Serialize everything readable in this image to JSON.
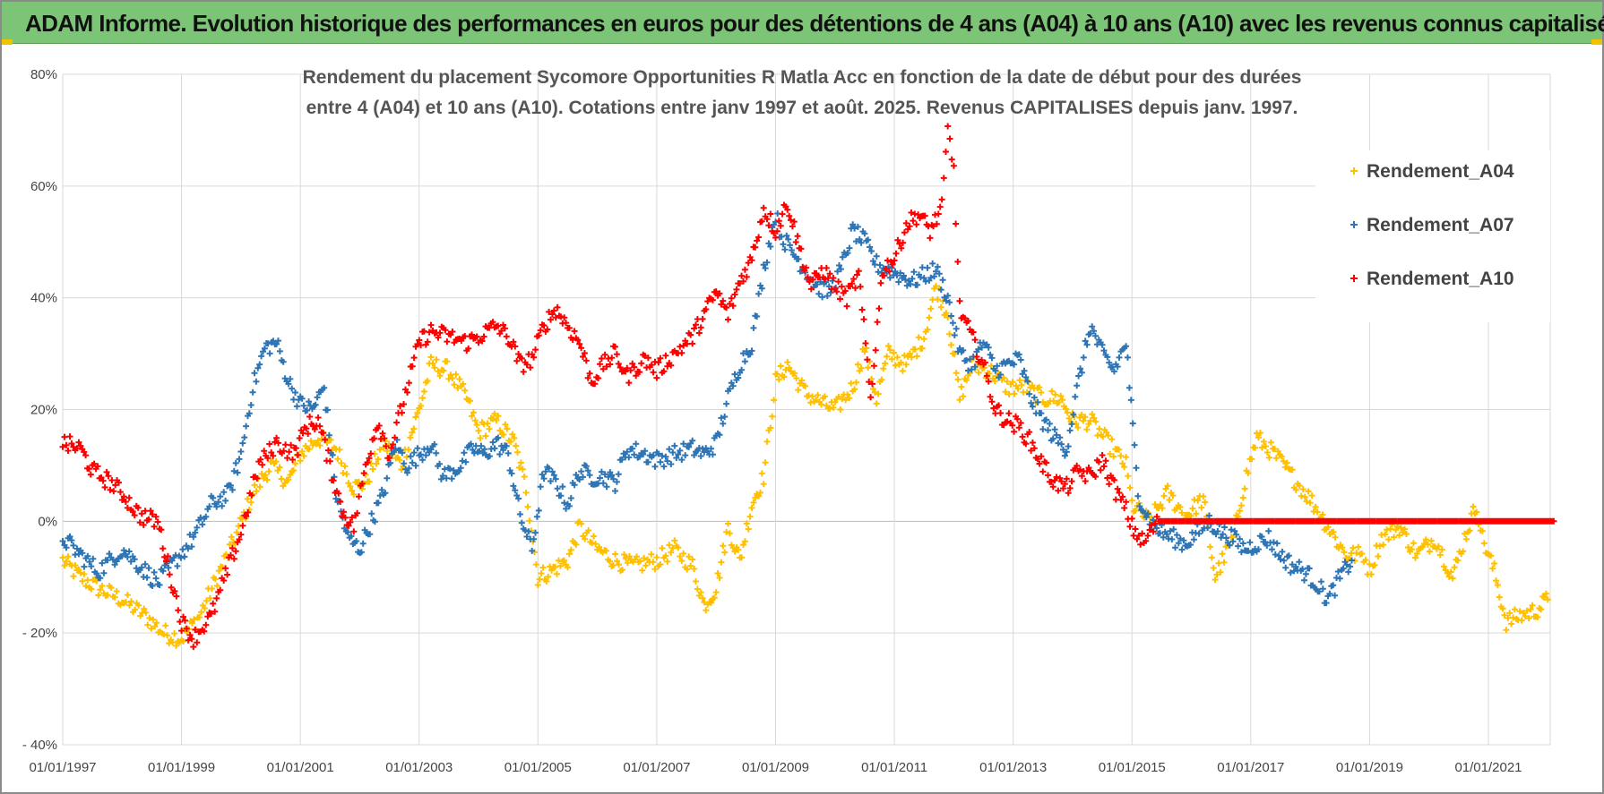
{
  "banner": {
    "title": "ADAM Informe. Evolution historique des performances en euros pour des détentions de 4 ans (A04) à 10 ans (A10) avec les revenus connus capitalisés",
    "color": "#7cc576"
  },
  "chart_data": {
    "type": "scatter",
    "title_lines": [
      "Rendement du placement Sycomore Opportunities R Matla Acc en fonction de la date de début pour des durées",
      "entre 4 (A04) et 10 ans (A10).  Cotations entre janv 1997 et août. 2025. Revenus CAPITALISES depuis janv. 1997."
    ],
    "xlabel": "",
    "ylabel": "",
    "x_unit": "year",
    "xlim": [
      1997.0,
      2022.2
    ],
    "ylim": [
      -40,
      80
    ],
    "x_ticks": [
      1997,
      1999,
      2001,
      2003,
      2005,
      2007,
      2009,
      2011,
      2013,
      2015,
      2017,
      2019,
      2021
    ],
    "x_tick_labels": [
      "01/01/1997",
      "01/01/1999",
      "01/01/2001",
      "01/01/2003",
      "01/01/2005",
      "01/01/2007",
      "01/01/2009",
      "01/01/2011",
      "01/01/2013",
      "01/01/2015",
      "01/01/2017",
      "01/01/2019",
      "01/01/2021"
    ],
    "y_ticks": [
      -40,
      -20,
      0,
      20,
      40,
      60,
      80
    ],
    "y_tick_labels": [
      "- 40%",
      "- 20%",
      "0%",
      "20%",
      "40%",
      "60%",
      "80%"
    ],
    "grid": true,
    "legend_position": "right",
    "series": [
      {
        "name": "Rendement_A04",
        "color": "#ffc000",
        "marker": "+",
        "points": [
          [
            1997.0,
            -7
          ],
          [
            1997.3,
            -10
          ],
          [
            1997.6,
            -12
          ],
          [
            1998.0,
            -14
          ],
          [
            1998.4,
            -17
          ],
          [
            1998.7,
            -20
          ],
          [
            1999.0,
            -21
          ],
          [
            1999.3,
            -17
          ],
          [
            1999.6,
            -10
          ],
          [
            1999.9,
            -3
          ],
          [
            2000.2,
            5
          ],
          [
            2000.5,
            10
          ],
          [
            2000.8,
            7
          ],
          [
            2001.0,
            12
          ],
          [
            2001.3,
            15
          ],
          [
            2001.6,
            13
          ],
          [
            2001.9,
            6
          ],
          [
            2002.1,
            7
          ],
          [
            2002.4,
            14
          ],
          [
            2002.7,
            10
          ],
          [
            2003.0,
            20
          ],
          [
            2003.2,
            28
          ],
          [
            2003.5,
            27
          ],
          [
            2003.8,
            22
          ],
          [
            2004.0,
            16
          ],
          [
            2004.3,
            18
          ],
          [
            2004.6,
            14
          ],
          [
            2004.8,
            6
          ],
          [
            2005.0,
            -10
          ],
          [
            2005.2,
            -9
          ],
          [
            2005.5,
            -7
          ],
          [
            2005.7,
            -1
          ],
          [
            2006.0,
            -5
          ],
          [
            2006.3,
            -7
          ],
          [
            2006.6,
            -8
          ],
          [
            2007.0,
            -7
          ],
          [
            2007.3,
            -5
          ],
          [
            2007.6,
            -8
          ],
          [
            2007.8,
            -15
          ],
          [
            2008.0,
            -12
          ],
          [
            2008.2,
            -1
          ],
          [
            2008.4,
            -7
          ],
          [
            2008.6,
            3
          ],
          [
            2008.8,
            8
          ],
          [
            2009.0,
            25
          ],
          [
            2009.2,
            28
          ],
          [
            2009.5,
            23
          ],
          [
            2009.8,
            21
          ],
          [
            2010.0,
            20
          ],
          [
            2010.3,
            24
          ],
          [
            2010.5,
            31
          ],
          [
            2010.7,
            22
          ],
          [
            2010.9,
            30
          ],
          [
            2011.2,
            28
          ],
          [
            2011.5,
            33
          ],
          [
            2011.7,
            42
          ],
          [
            2011.9,
            37
          ],
          [
            2012.1,
            22
          ],
          [
            2012.3,
            28
          ],
          [
            2012.6,
            27
          ],
          [
            2012.9,
            24
          ],
          [
            2013.2,
            24
          ],
          [
            2013.5,
            22
          ],
          [
            2013.8,
            22
          ],
          [
            2014.0,
            18
          ],
          [
            2014.3,
            18
          ],
          [
            2014.6,
            14
          ],
          [
            2014.9,
            10
          ],
          [
            2015.0,
            3
          ],
          [
            2015.3,
            0
          ],
          [
            2015.6,
            5
          ],
          [
            2015.9,
            1
          ],
          [
            2016.2,
            4
          ],
          [
            2016.4,
            -10
          ],
          [
            2016.7,
            -3
          ],
          [
            2016.9,
            7
          ],
          [
            2017.1,
            15
          ],
          [
            2017.4,
            12
          ],
          [
            2017.7,
            8
          ],
          [
            2018.0,
            4
          ],
          [
            2018.3,
            -1
          ],
          [
            2018.6,
            -6
          ],
          [
            2018.9,
            -6
          ],
          [
            2019.0,
            -9
          ],
          [
            2019.2,
            -3
          ],
          [
            2019.5,
            -1
          ],
          [
            2019.8,
            -6
          ],
          [
            2020.1,
            -3
          ],
          [
            2020.4,
            -10
          ],
          [
            2020.6,
            -3
          ],
          [
            2020.8,
            3
          ],
          [
            2020.9,
            -3
          ],
          [
            2021.1,
            -9
          ],
          [
            2021.3,
            -18
          ],
          [
            2021.5,
            -17
          ],
          [
            2021.8,
            -16
          ],
          [
            2022.0,
            -14
          ]
        ]
      },
      {
        "name": "Rendement_A07",
        "color": "#2e75b6",
        "marker": "+",
        "points": [
          [
            1997.0,
            -3
          ],
          [
            1997.3,
            -6
          ],
          [
            1997.6,
            -9
          ],
          [
            1998.0,
            -5
          ],
          [
            1998.3,
            -8
          ],
          [
            1998.6,
            -11
          ],
          [
            1998.9,
            -7
          ],
          [
            1999.2,
            -3
          ],
          [
            1999.5,
            3
          ],
          [
            1999.8,
            5
          ],
          [
            2000.0,
            12
          ],
          [
            2000.2,
            24
          ],
          [
            2000.4,
            31
          ],
          [
            2000.6,
            32
          ],
          [
            2000.8,
            25
          ],
          [
            2001.0,
            21
          ],
          [
            2001.2,
            20
          ],
          [
            2001.4,
            24
          ],
          [
            2001.6,
            5
          ],
          [
            2001.8,
            -3
          ],
          [
            2002.0,
            -5
          ],
          [
            2002.2,
            0
          ],
          [
            2002.4,
            5
          ],
          [
            2002.6,
            14
          ],
          [
            2002.8,
            10
          ],
          [
            2003.0,
            12
          ],
          [
            2003.2,
            14
          ],
          [
            2003.4,
            8
          ],
          [
            2003.7,
            10
          ],
          [
            2003.9,
            13
          ],
          [
            2004.1,
            12
          ],
          [
            2004.3,
            14
          ],
          [
            2004.5,
            12
          ],
          [
            2004.7,
            1
          ],
          [
            2004.9,
            -5
          ],
          [
            2005.1,
            9
          ],
          [
            2005.3,
            7
          ],
          [
            2005.5,
            3
          ],
          [
            2005.7,
            9
          ],
          [
            2005.9,
            8
          ],
          [
            2006.1,
            8
          ],
          [
            2006.3,
            7
          ],
          [
            2006.5,
            13
          ],
          [
            2006.8,
            12
          ],
          [
            2007.0,
            11
          ],
          [
            2007.3,
            12
          ],
          [
            2007.6,
            13
          ],
          [
            2007.8,
            12
          ],
          [
            2008.0,
            14
          ],
          [
            2008.2,
            22
          ],
          [
            2008.4,
            28
          ],
          [
            2008.6,
            32
          ],
          [
            2008.8,
            45
          ],
          [
            2009.0,
            55
          ],
          [
            2009.1,
            51
          ],
          [
            2009.3,
            48
          ],
          [
            2009.5,
            45
          ],
          [
            2009.7,
            42
          ],
          [
            2009.9,
            41
          ],
          [
            2010.1,
            45
          ],
          [
            2010.3,
            52
          ],
          [
            2010.5,
            50
          ],
          [
            2010.7,
            46
          ],
          [
            2010.9,
            45
          ],
          [
            2011.1,
            44
          ],
          [
            2011.3,
            43
          ],
          [
            2011.5,
            44
          ],
          [
            2011.7,
            45
          ],
          [
            2011.9,
            40
          ],
          [
            2012.1,
            30
          ],
          [
            2012.3,
            28
          ],
          [
            2012.5,
            32
          ],
          [
            2012.7,
            27
          ],
          [
            2012.9,
            28
          ],
          [
            2013.1,
            29
          ],
          [
            2013.3,
            22
          ],
          [
            2013.5,
            18
          ],
          [
            2013.7,
            15
          ],
          [
            2013.9,
            13
          ],
          [
            2014.1,
            25
          ],
          [
            2014.3,
            35
          ],
          [
            2014.5,
            30
          ],
          [
            2014.7,
            27
          ],
          [
            2014.9,
            32
          ],
          [
            2015.1,
            5
          ],
          [
            2015.3,
            0
          ],
          [
            2015.5,
            -2
          ],
          [
            2015.7,
            -3
          ],
          [
            2015.9,
            -4
          ],
          [
            2016.1,
            -2
          ],
          [
            2016.3,
            0
          ],
          [
            2016.5,
            -2
          ],
          [
            2016.7,
            -3
          ],
          [
            2016.9,
            -5
          ],
          [
            2017.1,
            -4
          ],
          [
            2017.3,
            -3
          ],
          [
            2017.5,
            -6
          ],
          [
            2017.7,
            -8
          ],
          [
            2017.9,
            -9
          ],
          [
            2018.1,
            -11
          ],
          [
            2018.3,
            -14
          ],
          [
            2018.5,
            -10
          ],
          [
            2018.7,
            -7
          ]
        ]
      },
      {
        "name": "Rendement_A10",
        "color": "#ff0000",
        "marker": "+",
        "points": [
          [
            1997.0,
            14
          ],
          [
            1997.3,
            13
          ],
          [
            1997.5,
            9
          ],
          [
            1997.8,
            7
          ],
          [
            1998.0,
            5
          ],
          [
            1998.3,
            1
          ],
          [
            1998.6,
            0
          ],
          [
            1998.8,
            -9
          ],
          [
            1999.0,
            -18
          ],
          [
            1999.2,
            -21
          ],
          [
            1999.5,
            -17
          ],
          [
            1999.8,
            -8
          ],
          [
            2000.0,
            -2
          ],
          [
            2000.3,
            10
          ],
          [
            2000.6,
            14
          ],
          [
            2000.9,
            12
          ],
          [
            2001.1,
            17
          ],
          [
            2001.3,
            18
          ],
          [
            2001.5,
            10
          ],
          [
            2001.7,
            2
          ],
          [
            2001.9,
            -1
          ],
          [
            2002.1,
            10
          ],
          [
            2002.3,
            18
          ],
          [
            2002.5,
            12
          ],
          [
            2002.8,
            24
          ],
          [
            2003.0,
            32
          ],
          [
            2003.2,
            34
          ],
          [
            2003.5,
            33
          ],
          [
            2003.8,
            32
          ],
          [
            2004.0,
            33
          ],
          [
            2004.3,
            35
          ],
          [
            2004.5,
            33
          ],
          [
            2004.7,
            28
          ],
          [
            2004.9,
            29
          ],
          [
            2005.1,
            35
          ],
          [
            2005.3,
            38
          ],
          [
            2005.5,
            35
          ],
          [
            2005.7,
            32
          ],
          [
            2005.9,
            25
          ],
          [
            2006.1,
            28
          ],
          [
            2006.3,
            30
          ],
          [
            2006.5,
            26
          ],
          [
            2006.8,
            29
          ],
          [
            2007.0,
            27
          ],
          [
            2007.3,
            30
          ],
          [
            2007.6,
            33
          ],
          [
            2007.8,
            37
          ],
          [
            2008.0,
            41
          ],
          [
            2008.2,
            37
          ],
          [
            2008.4,
            43
          ],
          [
            2008.6,
            47
          ],
          [
            2008.8,
            56
          ],
          [
            2009.0,
            52
          ],
          [
            2009.2,
            57
          ],
          [
            2009.4,
            49
          ],
          [
            2009.6,
            42
          ],
          [
            2009.8,
            45
          ],
          [
            2010.0,
            42
          ],
          [
            2010.2,
            40
          ],
          [
            2010.4,
            44
          ],
          [
            2010.6,
            22
          ],
          [
            2010.8,
            45
          ],
          [
            2011.0,
            47
          ],
          [
            2011.2,
            53
          ],
          [
            2011.4,
            55
          ],
          [
            2011.6,
            52
          ],
          [
            2011.8,
            56
          ],
          [
            2011.9,
            70
          ],
          [
            2012.0,
            63
          ],
          [
            2012.1,
            38
          ],
          [
            2012.3,
            33
          ],
          [
            2012.5,
            28
          ],
          [
            2012.7,
            20
          ],
          [
            2012.9,
            18
          ],
          [
            2013.1,
            17
          ],
          [
            2013.3,
            14
          ],
          [
            2013.5,
            10
          ],
          [
            2013.7,
            7
          ],
          [
            2013.9,
            6
          ],
          [
            2014.1,
            9
          ],
          [
            2014.3,
            8
          ],
          [
            2014.5,
            11
          ],
          [
            2014.7,
            6
          ],
          [
            2014.9,
            2
          ],
          [
            2015.0,
            -1
          ],
          [
            2015.2,
            -4
          ],
          [
            2015.3,
            -2
          ],
          [
            2015.45,
            0
          ],
          [
            2016.0,
            0
          ],
          [
            2017.0,
            0
          ],
          [
            2018.0,
            0
          ],
          [
            2019.0,
            0
          ],
          [
            2020.0,
            0
          ],
          [
            2021.0,
            0
          ],
          [
            2022.1,
            0
          ]
        ]
      }
    ]
  }
}
